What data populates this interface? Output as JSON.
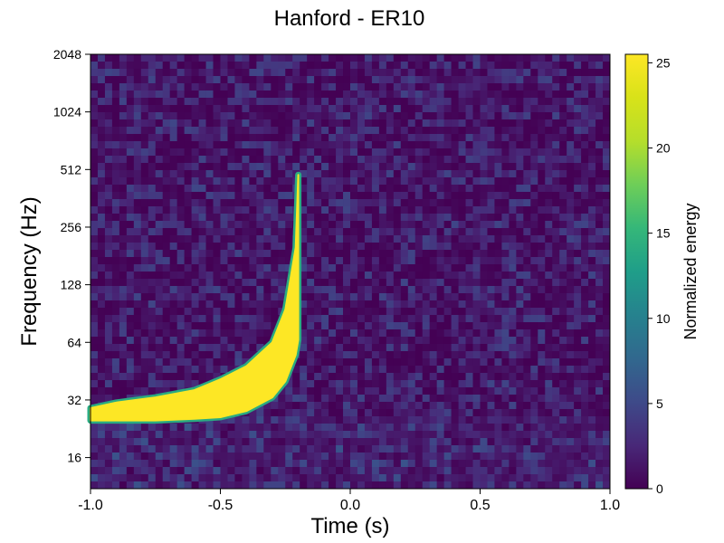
{
  "chart_data": {
    "type": "heatmap",
    "title": "Hanford - ER10",
    "xlabel": "Time (s)",
    "ylabel": "Frequency (Hz)",
    "colorbar_label": "Normalized energy",
    "xlim": [
      -1.0,
      1.0
    ],
    "ylim": [
      11,
      2048
    ],
    "y_scale": "log2",
    "colormap": "viridis",
    "color_range": [
      0,
      25.5
    ],
    "x_ticks": [
      {
        "value": -1.0,
        "label": "-1.0"
      },
      {
        "value": -0.5,
        "label": "-0.5"
      },
      {
        "value": 0.0,
        "label": "0.0"
      },
      {
        "value": 0.5,
        "label": "0.5"
      },
      {
        "value": 1.0,
        "label": "1.0"
      }
    ],
    "y_ticks": [
      {
        "value": 16,
        "label": "16"
      },
      {
        "value": 32,
        "label": "32"
      },
      {
        "value": 64,
        "label": "64"
      },
      {
        "value": 128,
        "label": "128"
      },
      {
        "value": 256,
        "label": "256"
      },
      {
        "value": 512,
        "label": "512"
      },
      {
        "value": 1024,
        "label": "1024"
      },
      {
        "value": 2048,
        "label": "2048"
      }
    ],
    "colorbar_ticks": [
      {
        "value": 0,
        "label": "0"
      },
      {
        "value": 5,
        "label": "5"
      },
      {
        "value": 10,
        "label": "10"
      },
      {
        "value": 15,
        "label": "15"
      },
      {
        "value": 20,
        "label": "20"
      },
      {
        "value": 25,
        "label": "25"
      }
    ],
    "chirp_track": {
      "description_values": "time (s) vs upper and lower frequency (Hz) of saturated region",
      "points": [
        {
          "t": -1.0,
          "f_low": 25,
          "f_high": 29
        },
        {
          "t": -0.9,
          "f_low": 25,
          "f_high": 31
        },
        {
          "t": -0.75,
          "f_low": 25,
          "f_high": 33
        },
        {
          "t": -0.6,
          "f_low": 25.5,
          "f_high": 36
        },
        {
          "t": -0.5,
          "f_low": 26,
          "f_high": 41
        },
        {
          "t": -0.4,
          "f_low": 28,
          "f_high": 48
        },
        {
          "t": -0.3,
          "f_low": 33,
          "f_high": 64
        },
        {
          "t": -0.25,
          "f_low": 40,
          "f_high": 95
        },
        {
          "t": -0.21,
          "f_low": 55,
          "f_high": 200
        },
        {
          "t": -0.2,
          "f_low": 66,
          "f_high": 480
        }
      ],
      "peak_value": 25.5
    },
    "background_level": 1.5
  }
}
